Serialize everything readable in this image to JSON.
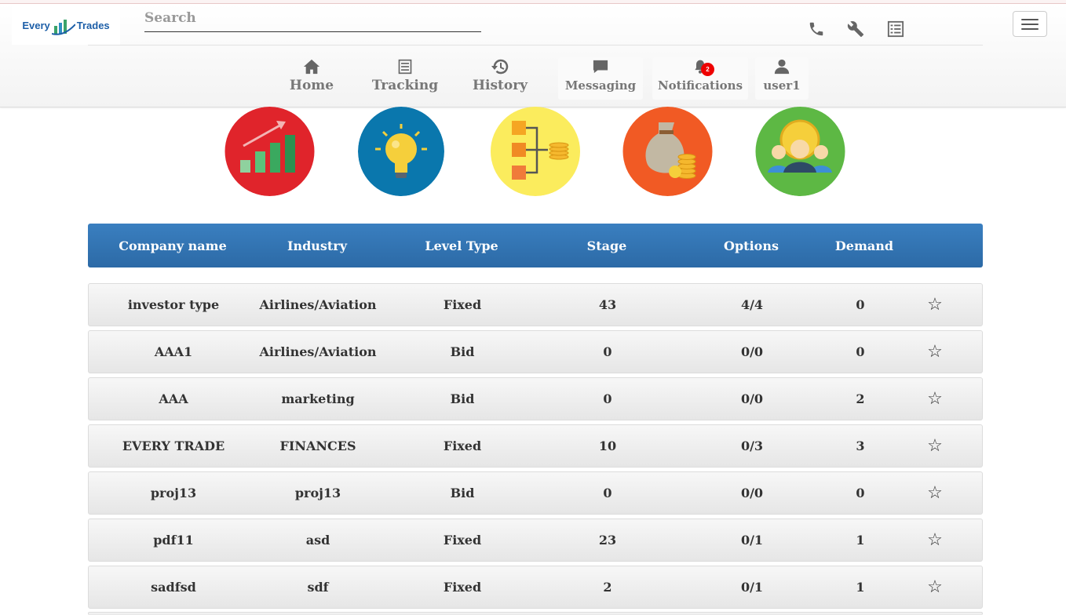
{
  "header": {
    "logo": {
      "part1": "Every",
      "part2": "Trades"
    },
    "search_placeholder": "Search",
    "tools": [
      "phone-icon",
      "wrench-icon",
      "list-icon"
    ],
    "menu": "hamburger-icon"
  },
  "nav": {
    "home": "Home",
    "tracking": "Tracking",
    "history": "History",
    "messaging": "Messaging",
    "notifications": "Notifications",
    "notification_count": "2",
    "user": "user1"
  },
  "categories": [
    {
      "icon": "growth-chart-icon",
      "color": "#e0242b"
    },
    {
      "icon": "lightbulb-icon",
      "color": "#0a77ad"
    },
    {
      "icon": "flowchart-coins-icon",
      "color": "#fbec5d"
    },
    {
      "icon": "money-bag-icon",
      "color": "#f15a24"
    },
    {
      "icon": "investors-group-icon",
      "color": "#5db844"
    }
  ],
  "table": {
    "columns": [
      "Company name",
      "Industry",
      "Level Type",
      "Stage",
      "Options",
      "Demand"
    ],
    "rows": [
      {
        "company": "investor type",
        "industry": "Airlines/Aviation",
        "level": "Fixed",
        "stage": "43",
        "options": "4/4",
        "demand": "0",
        "star": "☆"
      },
      {
        "company": "AAA1",
        "industry": "Airlines/Aviation",
        "level": "Bid",
        "stage": "0",
        "options": "0/0",
        "demand": "0",
        "star": "☆"
      },
      {
        "company": "AAA",
        "industry": "marketing",
        "level": "Bid",
        "stage": "0",
        "options": "0/0",
        "demand": "2",
        "star": "☆"
      },
      {
        "company": "EVERY TRADE",
        "industry": "FINANCES",
        "level": "Fixed",
        "stage": "10",
        "options": "0/3",
        "demand": "3",
        "star": "☆"
      },
      {
        "company": "proj13",
        "industry": "proj13",
        "level": "Bid",
        "stage": "0",
        "options": "0/0",
        "demand": "0",
        "star": "☆"
      },
      {
        "company": "pdf11",
        "industry": "asd",
        "level": "Fixed",
        "stage": "23",
        "options": "0/1",
        "demand": "1",
        "star": "☆"
      },
      {
        "company": "sadfsd",
        "industry": "sdf",
        "level": "Fixed",
        "stage": "2",
        "options": "0/1",
        "demand": "1",
        "star": "☆"
      }
    ]
  }
}
